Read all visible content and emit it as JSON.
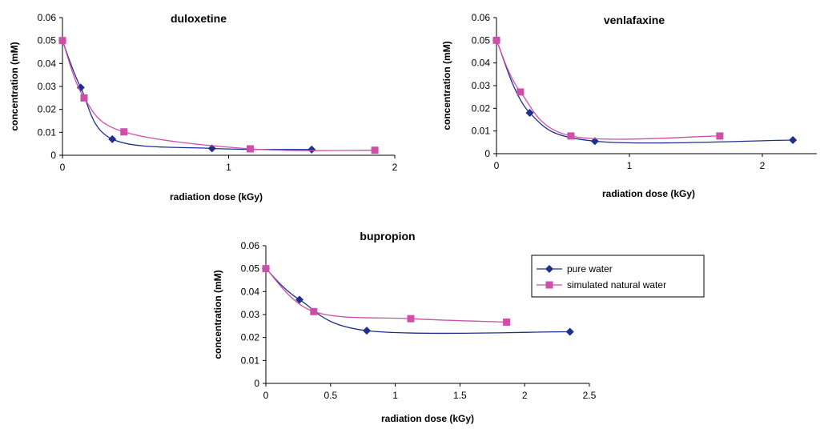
{
  "chart_data": [
    {
      "type": "line",
      "title": "duloxetine",
      "xlabel": "radiation dose (kGy)",
      "ylabel": "concentration (mM)",
      "xlim": [
        0,
        2
      ],
      "ylim": [
        0,
        0.06
      ],
      "xticks": [
        "0",
        "1",
        "2"
      ],
      "yticks": [
        "0",
        "0.01",
        "0.02",
        "0.03",
        "0.04",
        "0.05",
        "0.06"
      ],
      "series": [
        {
          "name": "pure water",
          "color": "#1f2f8f",
          "marker": "diamond",
          "x": [
            0,
            0.11,
            0.3,
            0.9,
            1.5
          ],
          "y": [
            0.05,
            0.0295,
            0.007,
            0.003,
            0.0025
          ]
        },
        {
          "name": "simulated natural water",
          "color": "#cc4fa8",
          "marker": "square",
          "x": [
            0,
            0.13,
            0.37,
            1.13,
            1.88
          ],
          "y": [
            0.05,
            0.025,
            0.0102,
            0.0028,
            0.0022
          ]
        }
      ]
    },
    {
      "type": "line",
      "title": "venlafaxine",
      "xlabel": "radiation dose (kGy)",
      "ylabel": "concentration (mM)",
      "xlim": [
        0,
        2.5
      ],
      "ylim": [
        0,
        0.06
      ],
      "xticks": [
        "0",
        "1",
        "2"
      ],
      "yticks": [
        "0",
        "0.01",
        "0.02",
        "0.03",
        "0.04",
        "0.05",
        "0.06"
      ],
      "series": [
        {
          "name": "pure water",
          "color": "#1f2f8f",
          "marker": "diamond",
          "x": [
            0,
            0.25,
            0.74,
            2.23
          ],
          "y": [
            0.05,
            0.018,
            0.0055,
            0.006
          ]
        },
        {
          "name": "simulated natural water",
          "color": "#cc4fa8",
          "marker": "square",
          "x": [
            0,
            0.18,
            0.56,
            1.68
          ],
          "y": [
            0.05,
            0.0272,
            0.0078,
            0.0078
          ]
        }
      ]
    },
    {
      "type": "line",
      "title": "bupropion",
      "xlabel": "radiation dose (kGy)",
      "ylabel": "concentration (mM)",
      "xlim": [
        0,
        2.5
      ],
      "ylim": [
        0,
        0.06
      ],
      "xticks": [
        "0",
        "0.5",
        "1",
        "1.5",
        "2",
        "2.5"
      ],
      "yticks": [
        "0",
        "0.01",
        "0.02",
        "0.03",
        "0.04",
        "0.05",
        "0.06"
      ],
      "legend": "top-right",
      "series": [
        {
          "name": "pure water",
          "color": "#1f2f8f",
          "marker": "diamond",
          "x": [
            0,
            0.26,
            0.78,
            2.35
          ],
          "y": [
            0.05,
            0.0365,
            0.023,
            0.0225
          ]
        },
        {
          "name": "simulated natural water",
          "color": "#cc4fa8",
          "marker": "square",
          "x": [
            0,
            0.37,
            1.12,
            1.86
          ],
          "y": [
            0.05,
            0.0313,
            0.0282,
            0.0267
          ]
        }
      ]
    }
  ]
}
